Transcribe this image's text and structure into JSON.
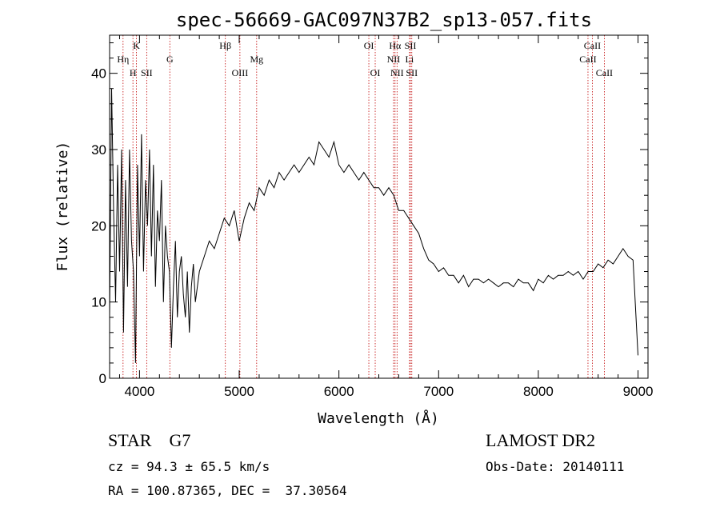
{
  "chart_data": {
    "type": "line",
    "title": "spec-56669-GAC097N37B2_sp13-057.fits",
    "xlabel": "Wavelength (Å)",
    "ylabel": "Flux (relative)",
    "xlim": [
      3700,
      9100
    ],
    "ylim": [
      0,
      45
    ],
    "xticks": [
      4000,
      5000,
      6000,
      7000,
      8000,
      9000
    ],
    "yticks": [
      0,
      10,
      20,
      30,
      40
    ],
    "grid": false,
    "series": [
      {
        "color": "#000000",
        "x": [
          3700,
          3720,
          3740,
          3760,
          3780,
          3800,
          3820,
          3840,
          3860,
          3880,
          3900,
          3920,
          3940,
          3960,
          3980,
          4000,
          4020,
          4040,
          4060,
          4080,
          4100,
          4120,
          4140,
          4160,
          4180,
          4200,
          4220,
          4240,
          4260,
          4280,
          4300,
          4320,
          4340,
          4360,
          4380,
          4400,
          4420,
          4440,
          4460,
          4480,
          4500,
          4520,
          4540,
          4560,
          4580,
          4600,
          4650,
          4700,
          4750,
          4800,
          4850,
          4900,
          4950,
          5000,
          5050,
          5100,
          5150,
          5200,
          5250,
          5300,
          5350,
          5400,
          5450,
          5500,
          5550,
          5600,
          5650,
          5700,
          5750,
          5800,
          5850,
          5900,
          5950,
          6000,
          6050,
          6100,
          6150,
          6200,
          6250,
          6300,
          6350,
          6400,
          6450,
          6500,
          6550,
          6600,
          6650,
          6700,
          6750,
          6800,
          6850,
          6900,
          6950,
          7000,
          7050,
          7100,
          7150,
          7200,
          7250,
          7300,
          7350,
          7400,
          7450,
          7500,
          7550,
          7600,
          7650,
          7700,
          7750,
          7800,
          7850,
          7900,
          7950,
          8000,
          8050,
          8100,
          8150,
          8200,
          8250,
          8300,
          8350,
          8400,
          8450,
          8500,
          8550,
          8600,
          8650,
          8700,
          8750,
          8800,
          8850,
          8900,
          8950,
          9000
        ],
        "y": [
          8,
          38,
          22,
          10,
          28,
          14,
          30,
          6,
          26,
          12,
          30,
          18,
          14,
          2,
          28,
          16,
          32,
          14,
          26,
          20,
          30,
          16,
          28,
          12,
          22,
          18,
          26,
          10,
          20,
          16,
          14,
          4,
          12,
          18,
          8,
          14,
          16,
          11,
          8,
          14,
          6,
          12,
          15,
          10,
          12,
          14,
          16,
          18,
          17,
          19,
          21,
          20,
          22,
          18,
          21,
          23,
          22,
          25,
          24,
          26,
          25,
          27,
          26,
          27,
          28,
          27,
          28,
          29,
          28,
          31,
          30,
          29,
          31,
          28,
          27,
          28,
          27,
          26,
          27,
          26,
          25,
          25,
          24,
          25,
          24,
          22,
          22,
          21,
          20,
          19,
          17,
          15.5,
          15,
          14,
          14.5,
          13.5,
          13.5,
          12.5,
          13.5,
          12,
          13,
          13,
          12.5,
          13,
          12.5,
          12,
          12.5,
          12.5,
          12,
          13,
          12.5,
          12.5,
          11.5,
          13,
          12.5,
          13.5,
          13,
          13.5,
          13.5,
          14,
          13.5,
          14,
          13,
          14,
          14,
          15,
          14.5,
          15.5,
          15,
          16,
          17,
          16,
          15.5,
          3
        ]
      }
    ],
    "lines": [
      {
        "name": "H",
        "wave": 3934,
        "row": 3
      },
      {
        "name": "Hη",
        "wave": 3835,
        "row": 2
      },
      {
        "name": "K",
        "wave": 3969,
        "row": 1
      },
      {
        "name": "SII",
        "wave": 4072,
        "row": 3
      },
      {
        "name": "G",
        "wave": 4304,
        "row": 2
      },
      {
        "name": "Hβ",
        "wave": 4861,
        "row": 1
      },
      {
        "name": "OIII",
        "wave": 5007,
        "row": 3
      },
      {
        "name": "Mg",
        "wave": 5175,
        "row": 2
      },
      {
        "name": "OI",
        "wave": 6300,
        "row": 1
      },
      {
        "name": "OI",
        "wave": 6364,
        "row": 3
      },
      {
        "name": "Hα",
        "wave": 6563,
        "row": 1
      },
      {
        "name": "NII",
        "wave": 6548,
        "row": 2
      },
      {
        "name": "NII",
        "wave": 6583,
        "row": 3
      },
      {
        "name": "SII",
        "wave": 6717,
        "row": 1
      },
      {
        "name": "Li",
        "wave": 6708,
        "row": 2
      },
      {
        "name": "SII",
        "wave": 6731,
        "row": 3
      },
      {
        "name": "CaII",
        "wave": 8542,
        "row": 1
      },
      {
        "name": "CaII",
        "wave": 8498,
        "row": 2
      },
      {
        "name": "CaII",
        "wave": 8662,
        "row": 3
      }
    ]
  },
  "info": {
    "class_line": "STAR    G7",
    "survey": "LAMOST DR2",
    "cz_line": "cz = 94.3 ± 65.5 km/s",
    "obs_date": "Obs-Date: 20140111",
    "radec_line": "RA = 100.87365, DEC =  37.30564"
  },
  "colors": {
    "spectrum": "#000000",
    "marker_line": "#c00000"
  }
}
